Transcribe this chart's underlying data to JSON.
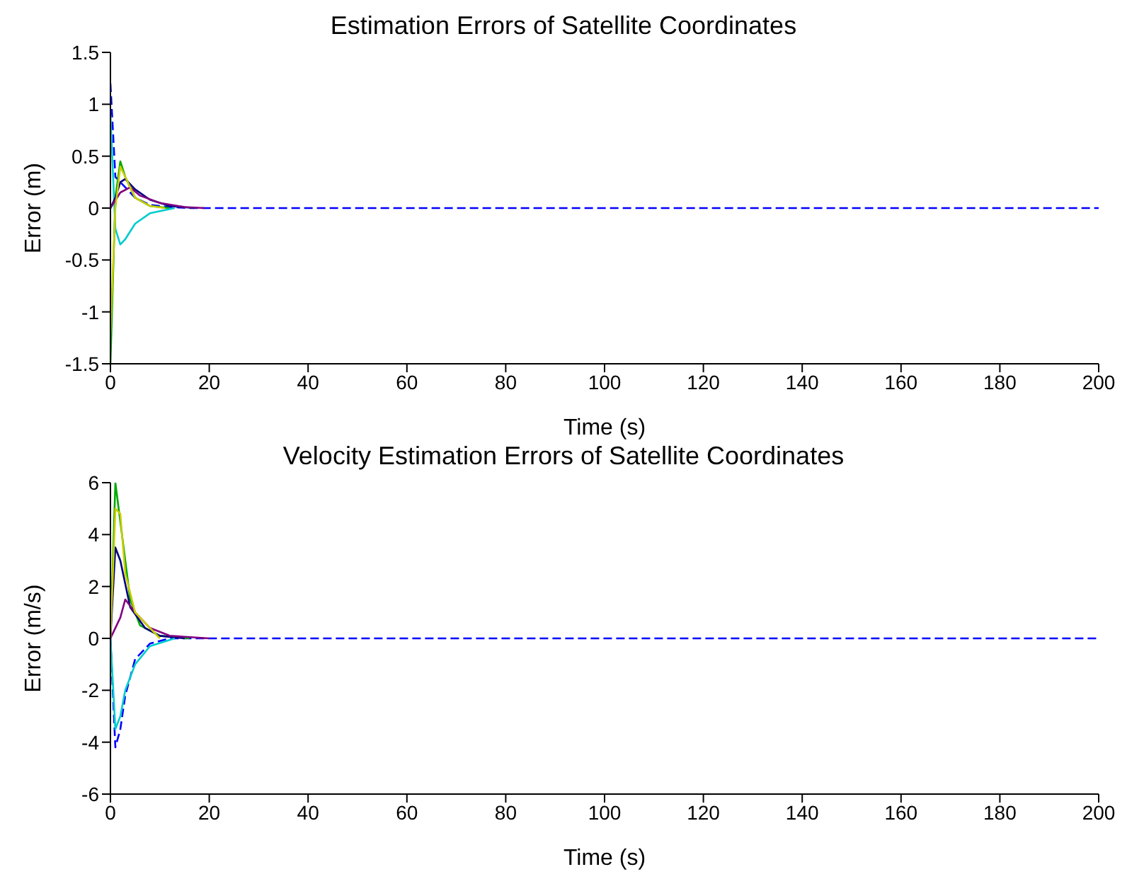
{
  "chart_data": [
    {
      "type": "line",
      "title": "Estimation Errors of Satellite Coordinates",
      "xlabel": "Time (s)",
      "ylabel": "Error (m)",
      "xlim": [
        0,
        200
      ],
      "ylim": [
        -1.5,
        1.5
      ],
      "xticks": [
        0,
        20,
        40,
        60,
        80,
        100,
        120,
        140,
        160,
        180,
        200
      ],
      "yticks": [
        -1.5,
        -1,
        -0.5,
        0,
        0.5,
        1,
        1.5
      ],
      "grid": false,
      "legend": false,
      "marker": "none",
      "series": [
        {
          "color": "#0000ff",
          "x": [
            0,
            1,
            2,
            3,
            5,
            8,
            12,
            16,
            20,
            200
          ],
          "values": [
            1.2,
            0.3,
            0.25,
            0.2,
            0.1,
            0.03,
            0.01,
            0,
            0,
            0
          ],
          "line_style": "dashed"
        },
        {
          "color": "#00aa00",
          "x": [
            0,
            1,
            2,
            3,
            5,
            8,
            12
          ],
          "values": [
            -1.5,
            0.1,
            0.45,
            0.3,
            0.1,
            0.02,
            0
          ]
        },
        {
          "color": "#00cccc",
          "x": [
            0,
            1,
            2,
            3,
            5,
            8,
            13
          ],
          "values": [
            0.9,
            -0.2,
            -0.35,
            -0.3,
            -0.15,
            -0.05,
            0
          ]
        },
        {
          "color": "#000080",
          "x": [
            0,
            1,
            2,
            3,
            5,
            8,
            12,
            17
          ],
          "values": [
            0,
            0.1,
            0.25,
            0.28,
            0.18,
            0.08,
            0.02,
            0
          ]
        },
        {
          "color": "#800080",
          "x": [
            0,
            2,
            4,
            6,
            10,
            15,
            19
          ],
          "values": [
            0,
            0.15,
            0.2,
            0.12,
            0.05,
            0.01,
            0
          ]
        },
        {
          "color": "#cccc00",
          "x": [
            0,
            1,
            2,
            3,
            5,
            8,
            11
          ],
          "values": [
            -1.2,
            0,
            0.4,
            0.3,
            0.1,
            0.02,
            0
          ]
        }
      ]
    },
    {
      "type": "line",
      "title": "Velocity Estimation Errors of Satellite Coordinates",
      "xlabel": "Time (s)",
      "ylabel": "Error (m/s)",
      "xlim": [
        0,
        200
      ],
      "ylim": [
        -6,
        6
      ],
      "xticks": [
        0,
        20,
        40,
        60,
        80,
        100,
        120,
        140,
        160,
        180,
        200
      ],
      "yticks": [
        -6,
        -4,
        -2,
        0,
        2,
        4,
        6
      ],
      "grid": false,
      "legend": false,
      "marker": "none",
      "series": [
        {
          "color": "#0000ff",
          "x": [
            0,
            1,
            2,
            3,
            5,
            8,
            12,
            200
          ],
          "values": [
            0,
            -4.2,
            -3.5,
            -2.2,
            -0.8,
            -0.2,
            0,
            0
          ],
          "line_style": "dashed"
        },
        {
          "color": "#00aa00",
          "x": [
            0,
            1,
            2,
            3,
            4,
            6,
            10,
            16
          ],
          "values": [
            0,
            6,
            4.5,
            3,
            1.5,
            0.5,
            0.1,
            0
          ]
        },
        {
          "color": "#000080",
          "x": [
            0,
            1,
            2,
            4,
            7,
            10,
            15
          ],
          "values": [
            0,
            3.5,
            3,
            1.2,
            0.4,
            0.1,
            0
          ]
        },
        {
          "color": "#00cccc",
          "x": [
            0,
            1,
            2,
            3,
            5,
            8,
            13
          ],
          "values": [
            0,
            -3.5,
            -3,
            -2,
            -1,
            -0.3,
            0
          ]
        },
        {
          "color": "#800080",
          "x": [
            0,
            2,
            3,
            5,
            8,
            12,
            20
          ],
          "values": [
            0,
            0.8,
            1.5,
            1,
            0.4,
            0.1,
            0
          ]
        },
        {
          "color": "#cccc00",
          "x": [
            0,
            1,
            2,
            3,
            5,
            10
          ],
          "values": [
            0,
            5,
            4.8,
            2.5,
            1,
            0
          ]
        }
      ]
    }
  ]
}
